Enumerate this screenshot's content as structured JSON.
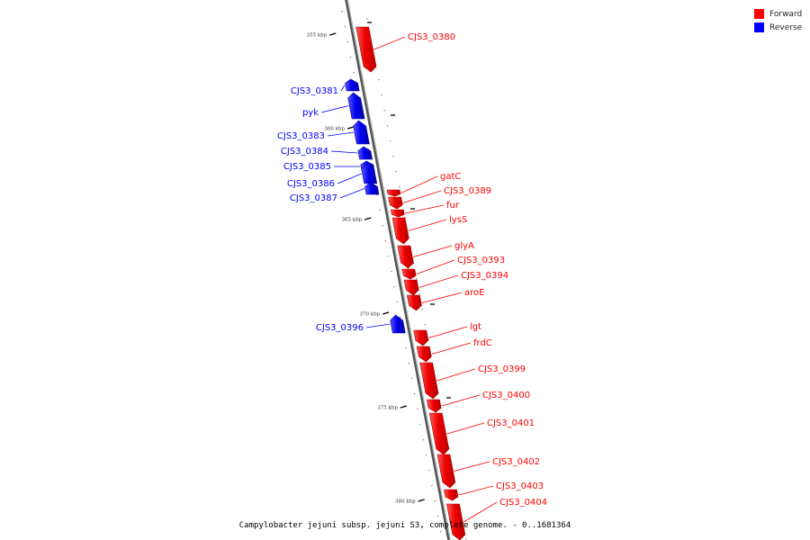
{
  "legend": {
    "forward_label": "Forward",
    "reverse_label": "Reverse",
    "forward_color": "#ff0000",
    "reverse_color": "#0000ff"
  },
  "caption": "Campylobacter jejuni subsp. jejuni S3, complete genome. - 0..1681364",
  "ticks": [
    "355 kbp",
    "360 kbp",
    "365 kbp",
    "370 kbp",
    "375 kbp",
    "380 kbp"
  ],
  "genes": [
    {
      "name": "CJS3_0380",
      "strand": "forward"
    },
    {
      "name": "CJS3_0381",
      "strand": "reverse"
    },
    {
      "name": "pyk",
      "strand": "reverse"
    },
    {
      "name": "CJS3_0383",
      "strand": "reverse"
    },
    {
      "name": "CJS3_0384",
      "strand": "reverse"
    },
    {
      "name": "CJS3_0385",
      "strand": "reverse"
    },
    {
      "name": "CJS3_0386",
      "strand": "reverse"
    },
    {
      "name": "CJS3_0387",
      "strand": "reverse"
    },
    {
      "name": "gatC",
      "strand": "forward"
    },
    {
      "name": "CJS3_0389",
      "strand": "forward"
    },
    {
      "name": "fur",
      "strand": "forward"
    },
    {
      "name": "lysS",
      "strand": "forward"
    },
    {
      "name": "glyA",
      "strand": "forward"
    },
    {
      "name": "CJS3_0393",
      "strand": "forward"
    },
    {
      "name": "CJS3_0394",
      "strand": "forward"
    },
    {
      "name": "aroE",
      "strand": "forward"
    },
    {
      "name": "CJS3_0396",
      "strand": "reverse"
    },
    {
      "name": "lgt",
      "strand": "forward"
    },
    {
      "name": "frdC",
      "strand": "forward"
    },
    {
      "name": "CJS3_0399",
      "strand": "forward"
    },
    {
      "name": "CJS3_0400",
      "strand": "forward"
    },
    {
      "name": "CJS3_0401",
      "strand": "forward"
    },
    {
      "name": "CJS3_0402",
      "strand": "forward"
    },
    {
      "name": "CJS3_0403",
      "strand": "forward"
    },
    {
      "name": "CJS3_0404",
      "strand": "forward"
    }
  ]
}
